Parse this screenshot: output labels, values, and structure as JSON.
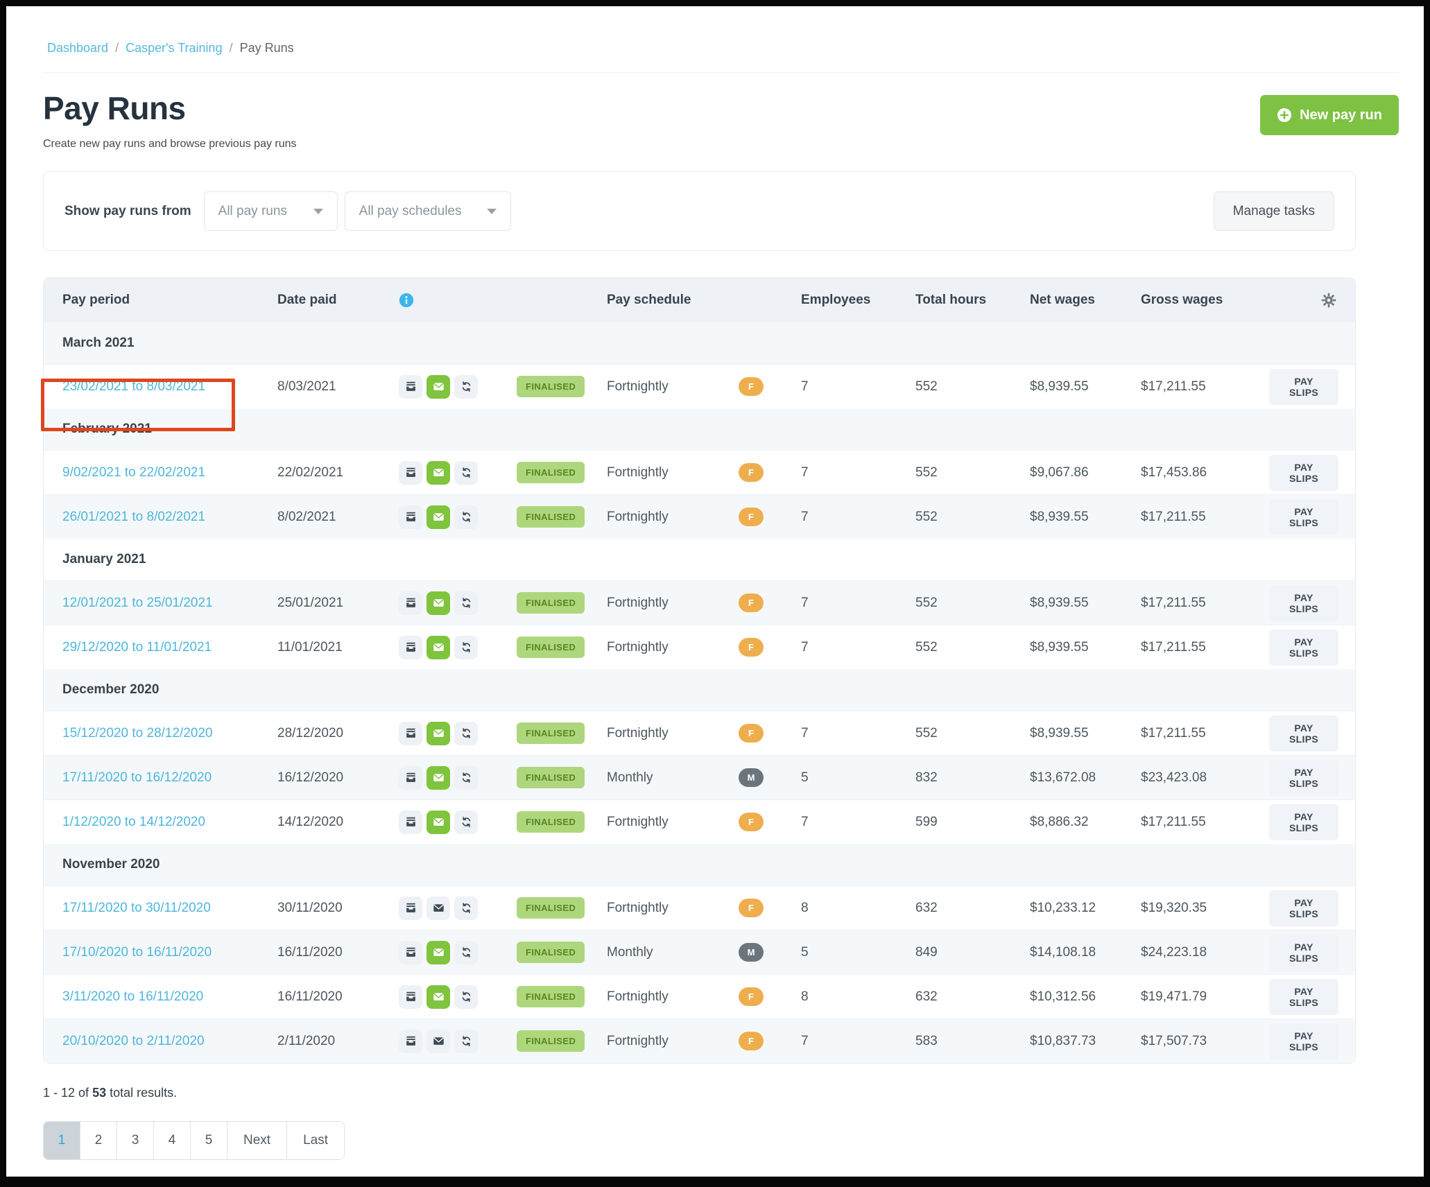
{
  "breadcrumb": {
    "items": [
      {
        "label": "Dashboard"
      },
      {
        "label": "Casper's Training"
      },
      {
        "label": "Pay Runs"
      }
    ]
  },
  "header": {
    "title": "Pay Runs",
    "subtitle": "Create new pay runs and browse previous pay runs",
    "new_pay_run_label": "New pay run"
  },
  "filters": {
    "label": "Show pay runs from",
    "pay_runs_dropdown_value": "All pay runs",
    "pay_schedules_dropdown_value": "All pay schedules",
    "manage_tasks_label": "Manage tasks"
  },
  "table": {
    "columns": {
      "pay_period": "Pay period",
      "date_paid": "Date paid",
      "pay_schedule": "Pay schedule",
      "employees": "Employees",
      "total_hours": "Total hours",
      "net_wages": "Net wages",
      "gross_wages": "Gross wages"
    },
    "payslips_label": "PAY SLIPS",
    "groups": [
      {
        "label": "March 2021",
        "rows": [
          {
            "period": "23/02/2021 to 8/03/2021",
            "date_paid": "8/03/2021",
            "email": "green",
            "status": "FINALISED",
            "schedule": "Fortnightly",
            "schedule_code": "F",
            "employees": "7",
            "total_hours": "552",
            "net_wages": "$8,939.55",
            "gross_wages": "$17,211.55",
            "highlight": true
          }
        ]
      },
      {
        "label": "February 2021",
        "rows": [
          {
            "period": "9/02/2021 to 22/02/2021",
            "date_paid": "22/02/2021",
            "email": "green",
            "status": "FINALISED",
            "schedule": "Fortnightly",
            "schedule_code": "F",
            "employees": "7",
            "total_hours": "552",
            "net_wages": "$9,067.86",
            "gross_wages": "$17,453.86"
          },
          {
            "period": "26/01/2021 to 8/02/2021",
            "date_paid": "8/02/2021",
            "email": "green",
            "status": "FINALISED",
            "schedule": "Fortnightly",
            "schedule_code": "F",
            "employees": "7",
            "total_hours": "552",
            "net_wages": "$8,939.55",
            "gross_wages": "$17,211.55"
          }
        ]
      },
      {
        "label": "January 2021",
        "rows": [
          {
            "period": "12/01/2021 to 25/01/2021",
            "date_paid": "25/01/2021",
            "email": "green",
            "status": "FINALISED",
            "schedule": "Fortnightly",
            "schedule_code": "F",
            "employees": "7",
            "total_hours": "552",
            "net_wages": "$8,939.55",
            "gross_wages": "$17,211.55"
          },
          {
            "period": "29/12/2020 to 11/01/2021",
            "date_paid": "11/01/2021",
            "email": "green",
            "status": "FINALISED",
            "schedule": "Fortnightly",
            "schedule_code": "F",
            "employees": "7",
            "total_hours": "552",
            "net_wages": "$8,939.55",
            "gross_wages": "$17,211.55"
          }
        ]
      },
      {
        "label": "December 2020",
        "rows": [
          {
            "period": "15/12/2020 to 28/12/2020",
            "date_paid": "28/12/2020",
            "email": "green",
            "status": "FINALISED",
            "schedule": "Fortnightly",
            "schedule_code": "F",
            "employees": "7",
            "total_hours": "552",
            "net_wages": "$8,939.55",
            "gross_wages": "$17,211.55"
          },
          {
            "period": "17/11/2020 to 16/12/2020",
            "date_paid": "16/12/2020",
            "email": "green",
            "status": "FINALISED",
            "schedule": "Monthly",
            "schedule_code": "M",
            "employees": "5",
            "total_hours": "832",
            "net_wages": "$13,672.08",
            "gross_wages": "$23,423.08"
          },
          {
            "period": "1/12/2020 to 14/12/2020",
            "date_paid": "14/12/2020",
            "email": "green",
            "status": "FINALISED",
            "schedule": "Fortnightly",
            "schedule_code": "F",
            "employees": "7",
            "total_hours": "599",
            "net_wages": "$8,886.32",
            "gross_wages": "$17,211.55"
          }
        ]
      },
      {
        "label": "November 2020",
        "rows": [
          {
            "period": "17/11/2020 to 30/11/2020",
            "date_paid": "30/11/2020",
            "email": "plain",
            "status": "FINALISED",
            "schedule": "Fortnightly",
            "schedule_code": "F",
            "employees": "8",
            "total_hours": "632",
            "net_wages": "$10,233.12",
            "gross_wages": "$19,320.35"
          },
          {
            "period": "17/10/2020 to 16/11/2020",
            "date_paid": "16/11/2020",
            "email": "green",
            "status": "FINALISED",
            "schedule": "Monthly",
            "schedule_code": "M",
            "employees": "5",
            "total_hours": "849",
            "net_wages": "$14,108.18",
            "gross_wages": "$24,223.18"
          },
          {
            "period": "3/11/2020 to 16/11/2020",
            "date_paid": "16/11/2020",
            "email": "green",
            "status": "FINALISED",
            "schedule": "Fortnightly",
            "schedule_code": "F",
            "employees": "8",
            "total_hours": "632",
            "net_wages": "$10,312.56",
            "gross_wages": "$19,471.79"
          },
          {
            "period": "20/10/2020 to 2/11/2020",
            "date_paid": "2/11/2020",
            "email": "plain",
            "status": "FINALISED",
            "schedule": "Fortnightly",
            "schedule_code": "F",
            "employees": "7",
            "total_hours": "583",
            "net_wages": "$10,837.73",
            "gross_wages": "$17,507.73"
          }
        ]
      }
    ]
  },
  "footer": {
    "results_prefix": "1 - 12 of",
    "results_total": "53",
    "results_suffix": "total results."
  },
  "pagination": {
    "pages": [
      "1",
      "2",
      "3",
      "4",
      "5"
    ],
    "active_page": "1",
    "next_label": "Next",
    "last_label": "Last"
  },
  "annotations": {
    "highlight_box_color": "#de471e",
    "highlight_target": "23/02/2021 to 8/03/2021"
  },
  "colors": {
    "primary_green": "#7dc242",
    "link_blue": "#55b8dc",
    "status_badge_bg": "#aed77d",
    "status_badge_text": "#57861d",
    "fortnightly_badge": "#efae4e",
    "monthly_badge": "#6d757c",
    "title_text": "#24333f"
  }
}
